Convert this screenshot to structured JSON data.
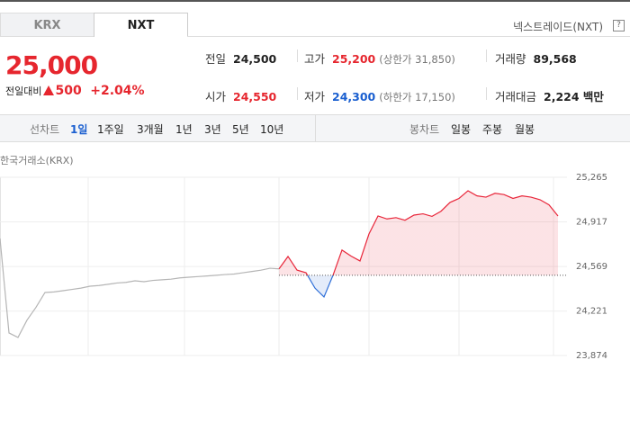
{
  "tabs": [
    "KRX",
    "NXT"
  ],
  "exchange_label": "넥스트레이드(NXT)",
  "help_icon": "?",
  "quote": {
    "price": "25,000",
    "change_label": "전일대비",
    "change": "500",
    "change_pct": "+2.04%"
  },
  "stats": [
    {
      "label": "전일",
      "value": "24,500"
    },
    {
      "label": "고가",
      "value": "25,200",
      "note": "(상한가 31,850)"
    },
    {
      "label": "거래량",
      "value": "89,568"
    },
    {
      "label": "시가",
      "value": "24,550"
    },
    {
      "label": "저가",
      "value": "24,300",
      "note": "(하한가 17,150)"
    },
    {
      "label": "거래대금",
      "value": "2,224 백만"
    }
  ],
  "line_chart_label": "선차트",
  "line_periods": [
    "1일",
    "1주일",
    "3개월",
    "1년",
    "3년",
    "5년",
    "10년"
  ],
  "candle_label": "봉차트",
  "candle_periods": [
    "일봉",
    "주봉",
    "월봉"
  ],
  "chart_data": {
    "type": "line",
    "source": "한국거래소(KRX)",
    "ylim": [
      23874,
      25265
    ],
    "yticks": [
      {
        "value": 25265,
        "label": "25,265"
      },
      {
        "value": 24917,
        "label": "24,917"
      },
      {
        "value": 24569,
        "label": "24,569"
      },
      {
        "value": 24221,
        "label": "24,221"
      },
      {
        "value": 23874,
        "label": "23,874"
      }
    ],
    "baseline": 24500,
    "below_color": "#2f6fd8",
    "series": [
      {
        "color": "#b5b5b5",
        "values": [
          24787,
          24050,
          24015,
          24150,
          24250,
          24366,
          24370,
          24380,
          24390,
          24400,
          24415,
          24420,
          24430,
          24440,
          24445,
          24457,
          24450,
          24460,
          24465,
          24470,
          24480,
          24485,
          24490,
          24495,
          24500,
          24506,
          24510,
          24520,
          24530,
          24540,
          24555,
          24550,
          null,
          null,
          null,
          null,
          null,
          null,
          null,
          null,
          null,
          null,
          null,
          null,
          null,
          null,
          null,
          null,
          null,
          null,
          null,
          null,
          null,
          null,
          null,
          null,
          null,
          null,
          null,
          null,
          null,
          null,
          null
        ]
      },
      {
        "color": "#e8263a",
        "values": [
          null,
          null,
          null,
          null,
          null,
          null,
          null,
          null,
          null,
          null,
          null,
          null,
          null,
          null,
          null,
          null,
          null,
          null,
          null,
          null,
          null,
          null,
          null,
          null,
          null,
          null,
          null,
          null,
          null,
          null,
          null,
          24550,
          24647,
          24541,
          24520,
          24400,
          24331,
          24500,
          24697,
          24650,
          24612,
          24823,
          24963,
          24940,
          24950,
          24930,
          24970,
          24980,
          24960,
          25000,
          25069,
          25100,
          25160,
          25120,
          25110,
          25140,
          25130,
          25100,
          25120,
          25110,
          25090,
          25050,
          24963
        ]
      }
    ]
  }
}
